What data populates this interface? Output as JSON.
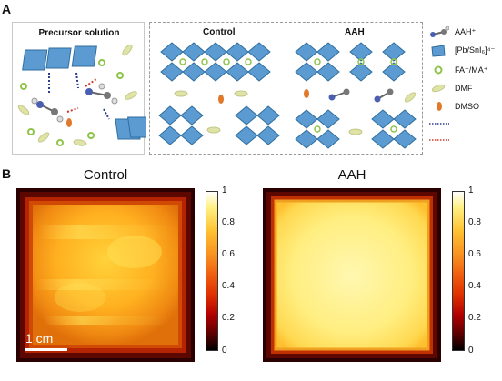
{
  "panelA": {
    "letter": "A",
    "precursor_title": "Precursor solution",
    "control_title": "Control",
    "aah_title": "AAH",
    "legend": [
      {
        "label": "AAH⁺",
        "icon": "aah-molecule-icon"
      },
      {
        "label": "[Pb/SnI₆]⁴⁻",
        "icon": "octahedron-icon"
      },
      {
        "label": "FA⁺/MA⁺",
        "icon": "green-circle-icon"
      },
      {
        "label": "DMF",
        "icon": "ellipse-icon"
      },
      {
        "label": "DMSO",
        "icon": "orange-capsule-icon"
      },
      {
        "label": "",
        "icon": "blue-dotted-line-icon"
      },
      {
        "label": "",
        "icon": "red-dotted-line-icon"
      }
    ],
    "colors": {
      "octahedron": "#5b9bd1",
      "octahedron_edge": "#2f6e9e",
      "fa_ma": "#8fc44a",
      "dmf": "#dfe3a6",
      "dmso": "#e07a2a",
      "blue_bond": "#2a3f8f",
      "red_bond": "#d03a2a"
    }
  },
  "panelB": {
    "letter": "B",
    "control_title": "Control",
    "aah_title": "AAH",
    "scale_bar": "1 cm",
    "colorbar_ticks": [
      "1",
      "0.8",
      "0.6",
      "0.4",
      "0.2",
      "0"
    ]
  }
}
